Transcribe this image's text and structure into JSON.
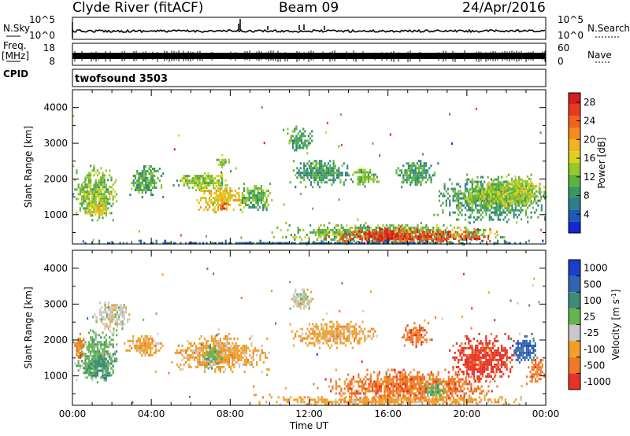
{
  "header": {
    "station": "Clyde River (fitACF)",
    "beam": "Beam 09",
    "date": "24/Apr/2016"
  },
  "top_panels": {
    "nsky_label": "N.Sky",
    "nsky_ticks": [
      "10^5",
      "10^0"
    ],
    "nsearch_label": "N.Search",
    "nsearch_ticks": [
      "10^5",
      "10^0"
    ],
    "freq_label": "Freq.",
    "freq_unit": "[MHz]",
    "freq_ticks": [
      "18",
      "8"
    ],
    "nave_label": "Nave",
    "nave_ticks": [
      "60",
      "0"
    ],
    "cpid_label": "CPID",
    "cpid_value": "twofsound 3503"
  },
  "chart_data": [
    {
      "type": "heatmap",
      "quantity": "Power",
      "xlabel": "",
      "ylabel": "Slant Range [km]",
      "xlim": [
        0,
        24
      ],
      "x_ticks": [
        "00:00",
        "04:00",
        "08:00",
        "12:00",
        "16:00",
        "20:00",
        "00:00"
      ],
      "ylim": [
        180,
        4500
      ],
      "y_ticks": [
        1000,
        2000,
        3000,
        4000
      ],
      "colorbar": {
        "label": "Power [dB]",
        "ticks": [
          4,
          8,
          12,
          16,
          20,
          24,
          28
        ],
        "range": [
          0,
          30
        ],
        "colors": [
          "#1428d2",
          "#1e5ab4",
          "#2d7d8c",
          "#3c9664",
          "#5ab43c",
          "#96c828",
          "#dcd21e",
          "#f0b41e",
          "#f58c1e",
          "#f0641e",
          "#e63c1e",
          "#d21e1e"
        ]
      },
      "regions": [
        {
          "t": [
            0.0,
            2.3
          ],
          "r": [
            850,
            2400
          ],
          "v": 12
        },
        {
          "t": [
            0.6,
            1.9
          ],
          "r": [
            900,
            1500
          ],
          "v": 17
        },
        {
          "t": [
            2.8,
            4.6
          ],
          "r": [
            1500,
            2450
          ],
          "v": 10
        },
        {
          "t": [
            5.0,
            8.0
          ],
          "r": [
            1700,
            2250
          ],
          "v": 13
        },
        {
          "t": [
            6.2,
            8.8
          ],
          "r": [
            1100,
            1900
          ],
          "v": 17
        },
        {
          "t": [
            7.4,
            7.9
          ],
          "r": [
            1100,
            1400
          ],
          "v": 25
        },
        {
          "t": [
            8.4,
            10.2
          ],
          "r": [
            1100,
            1900
          ],
          "v": 11
        },
        {
          "t": [
            7.2,
            8.0
          ],
          "r": [
            2300,
            2700
          ],
          "v": 13
        },
        {
          "t": [
            10.7,
            12.2
          ],
          "r": [
            2800,
            3500
          ],
          "v": 10
        },
        {
          "t": [
            11.0,
            14.2
          ],
          "r": [
            1800,
            2600
          ],
          "v": 9
        },
        {
          "t": [
            14.0,
            15.6
          ],
          "r": [
            1800,
            2350
          ],
          "v": 12
        },
        {
          "t": [
            16.3,
            18.5
          ],
          "r": [
            1800,
            2600
          ],
          "v": 9
        },
        {
          "t": [
            10.0,
            22.0
          ],
          "r": [
            200,
            800
          ],
          "v": 12
        },
        {
          "t": [
            12.7,
            21.5
          ],
          "r": [
            230,
            620
          ],
          "v": 25
        },
        {
          "t": [
            14.5,
            17.2
          ],
          "r": [
            250,
            700
          ],
          "v": 28
        },
        {
          "t": [
            18.3,
            24.0
          ],
          "r": [
            800,
            2150
          ],
          "v": 9
        },
        {
          "t": [
            19.5,
            24.0
          ],
          "r": [
            1200,
            2000
          ],
          "v": 14
        },
        {
          "t": [
            21.8,
            23.8
          ],
          "r": [
            1600,
            2100
          ],
          "v": 15
        },
        {
          "t": [
            0.0,
            24.0
          ],
          "r": [
            180,
            300
          ],
          "v": 5
        }
      ]
    },
    {
      "type": "heatmap",
      "quantity": "Velocity",
      "xlabel": "Time UT",
      "ylabel": "Slant Range [km]",
      "xlim": [
        0,
        24
      ],
      "x_ticks": [
        "00:00",
        "04:00",
        "08:00",
        "12:00",
        "16:00",
        "20:00",
        "00:00"
      ],
      "ylim": [
        180,
        4500
      ],
      "y_ticks": [
        1000,
        2000,
        3000,
        4000
      ],
      "colorbar": {
        "label": "Velocity [m s",
        "label_sup": "-1",
        "label_end": "]",
        "tick_labels": [
          "1000",
          "500",
          "100",
          "25",
          "-25",
          "-100",
          "-500",
          "-1000"
        ],
        "colors": [
          "#1e3cc8",
          "#3264b4",
          "#3c8c78",
          "#64b450",
          "#c8c8c8",
          "#f0a028",
          "#f07828",
          "#e63228"
        ]
      },
      "regions": [
        {
          "t": [
            0.0,
            2.4
          ],
          "r": [
            800,
            2300
          ],
          "c": 3
        },
        {
          "t": [
            0.7,
            2.1
          ],
          "r": [
            900,
            1700
          ],
          "c": 2
        },
        {
          "t": [
            0.0,
            0.6
          ],
          "r": [
            1400,
            2200
          ],
          "c": 6
        },
        {
          "t": [
            1.0,
            3.0
          ],
          "r": [
            2200,
            3200
          ],
          "c": 4
        },
        {
          "t": [
            2.6,
            4.6
          ],
          "r": [
            1500,
            2200
          ],
          "c": 5
        },
        {
          "t": [
            5.0,
            10.0
          ],
          "r": [
            1100,
            2200
          ],
          "c": 5
        },
        {
          "t": [
            6.5,
            7.6
          ],
          "r": [
            1200,
            1900
          ],
          "c": 3
        },
        {
          "t": [
            11.0,
            12.2
          ],
          "r": [
            2800,
            3500
          ],
          "c": 4
        },
        {
          "t": [
            11.0,
            15.5
          ],
          "r": [
            1800,
            2600
          ],
          "c": 5
        },
        {
          "t": [
            16.6,
            18.2
          ],
          "r": [
            1800,
            2500
          ],
          "c": 6
        },
        {
          "t": [
            12.8,
            21.5
          ],
          "r": [
            250,
            1200
          ],
          "c": 6
        },
        {
          "t": [
            17.7,
            19.0
          ],
          "r": [
            300,
            900
          ],
          "c": 3
        },
        {
          "t": [
            9.0,
            23.0
          ],
          "r": [
            180,
            500
          ],
          "c": 5
        },
        {
          "t": [
            19.0,
            22.5
          ],
          "r": [
            800,
            2200
          ],
          "c": 7
        },
        {
          "t": [
            22.2,
            23.7
          ],
          "r": [
            1300,
            2200
          ],
          "c": 1
        },
        {
          "t": [
            23.0,
            24.0
          ],
          "r": [
            800,
            1600
          ],
          "c": 6
        }
      ]
    }
  ]
}
